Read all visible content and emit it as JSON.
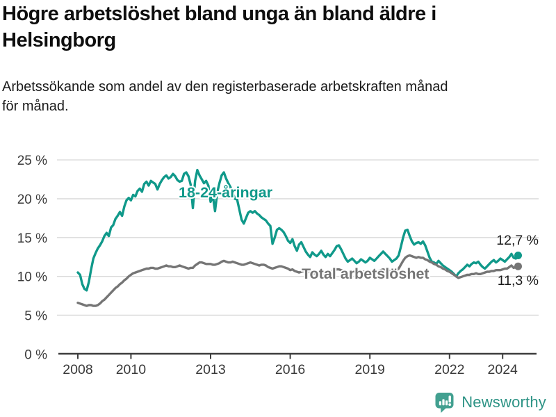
{
  "colors": {
    "background": "#ffffff",
    "accent_teal": "#10998a",
    "total_gray": "#757575",
    "grid": "#d9d9d9",
    "axis_line": "#3d3d3d",
    "axis_text": "#3a3a3a",
    "end_label_text": "#1a1a1a",
    "logo_teal": "#42a090"
  },
  "footer": {
    "brand": "Newsworthy",
    "logo_icon": "bar-chart-speech-bubble-icon"
  },
  "chart_data": {
    "type": "line",
    "title": "Högre arbetslöshet bland unga än bland äldre i Helsingborg",
    "subtitle": "Arbetssökande som andel av den registerbaserade arbetskraften månad för månad.",
    "grid": true,
    "legend_position": "inline-labels",
    "x_axis": {
      "unit": "year",
      "frequency": "monthly",
      "start": "2008-01",
      "end": "2024-08",
      "ticks": [
        2008,
        2010,
        2013,
        2016,
        2019,
        2022,
        2024
      ]
    },
    "y_axis": {
      "unit": "%",
      "range": [
        0,
        25
      ],
      "tick_labels": [
        "0 %",
        "5 %",
        "10 %",
        "15 %",
        "20 %",
        "25 %"
      ]
    },
    "series": [
      {
        "name": "18-24-åringar",
        "color": "#10998a",
        "end_label": "12,7 %",
        "end_value": 12.7,
        "values": [
          10.5,
          10.2,
          9.0,
          8.4,
          8.2,
          9.3,
          10.9,
          12.3,
          13.0,
          13.6,
          14.0,
          14.5,
          15.2,
          15.6,
          15.2,
          16.3,
          16.6,
          17.4,
          17.8,
          18.3,
          17.8,
          19.0,
          19.8,
          20.1,
          19.8,
          20.5,
          20.3,
          21.0,
          21.3,
          20.9,
          21.9,
          22.2,
          21.7,
          22.3,
          22.1,
          21.9,
          21.2,
          21.9,
          22.4,
          22.8,
          23.0,
          22.6,
          22.8,
          23.2,
          22.9,
          22.4,
          22.2,
          22.3,
          23.2,
          23.4,
          22.9,
          21.8,
          18.8,
          22.3,
          23.7,
          23.0,
          22.5,
          22.0,
          22.3,
          21.7,
          19.6,
          20.4,
          18.4,
          20.8,
          22.0,
          23.0,
          23.4,
          22.6,
          22.0,
          21.5,
          20.8,
          20.0,
          19.9,
          18.6,
          17.3,
          16.8,
          17.5,
          18.2,
          18.4,
          18.2,
          18.4,
          18.1,
          17.9,
          17.6,
          17.4,
          17.2,
          16.8,
          16.5,
          14.2,
          15.0,
          16.0,
          16.2,
          16.0,
          15.7,
          15.2,
          14.6,
          14.3,
          14.8,
          13.9,
          13.3,
          14.1,
          14.4,
          13.8,
          13.2,
          12.8,
          12.5,
          13.1,
          12.8,
          12.6,
          12.9,
          13.3,
          12.8,
          12.5,
          12.9,
          12.6,
          13.0,
          13.4,
          13.9,
          14.0,
          13.5,
          12.9,
          12.3,
          11.9,
          12.1,
          12.3,
          12.0,
          11.7,
          11.9,
          12.2,
          12.0,
          11.8,
          12.0,
          12.4,
          12.2,
          12.0,
          12.3,
          12.6,
          12.9,
          13.2,
          12.9,
          12.6,
          12.3,
          11.9,
          12.1,
          12.3,
          12.7,
          13.8,
          15.0,
          15.9,
          16.0,
          15.2,
          14.5,
          14.1,
          14.3,
          14.4,
          14.2,
          14.5,
          14.0,
          13.2,
          12.4,
          11.9,
          11.8,
          11.6,
          12.0,
          11.7,
          11.4,
          11.2,
          11.0,
          10.8,
          10.6,
          10.3,
          10.0,
          10.4,
          10.7,
          10.9,
          11.2,
          11.5,
          11.3,
          11.6,
          11.8,
          11.7,
          11.9,
          11.5,
          11.2,
          11.0,
          11.3,
          11.6,
          11.9,
          12.1,
          11.8,
          12.0,
          12.3,
          12.1,
          11.9,
          12.2,
          12.5,
          12.9,
          12.4,
          12.3,
          12.7
        ]
      },
      {
        "name": "Total arbetslöshet",
        "color": "#757575",
        "end_label": "11,3 %",
        "end_value": 11.3,
        "values": [
          6.6,
          6.5,
          6.4,
          6.3,
          6.2,
          6.3,
          6.3,
          6.2,
          6.2,
          6.3,
          6.5,
          6.8,
          7.0,
          7.3,
          7.6,
          7.9,
          8.2,
          8.5,
          8.7,
          9.0,
          9.2,
          9.5,
          9.7,
          10.0,
          10.2,
          10.4,
          10.5,
          10.6,
          10.7,
          10.8,
          10.9,
          11.0,
          11.0,
          11.1,
          11.1,
          11.0,
          11.0,
          11.1,
          11.2,
          11.3,
          11.4,
          11.3,
          11.3,
          11.2,
          11.2,
          11.3,
          11.4,
          11.3,
          11.2,
          11.1,
          11.0,
          11.1,
          11.1,
          11.4,
          11.6,
          11.8,
          11.8,
          11.7,
          11.6,
          11.6,
          11.6,
          11.5,
          11.5,
          11.6,
          11.7,
          11.9,
          12.0,
          11.9,
          11.8,
          11.8,
          11.9,
          11.8,
          11.7,
          11.6,
          11.5,
          11.5,
          11.6,
          11.7,
          11.8,
          11.7,
          11.6,
          11.5,
          11.4,
          11.5,
          11.5,
          11.4,
          11.2,
          11.1,
          11.0,
          11.1,
          11.2,
          11.3,
          11.3,
          11.2,
          11.1,
          11.0,
          10.8,
          10.9,
          10.7,
          10.6,
          10.5,
          10.6,
          10.7,
          10.7,
          10.6,
          10.5,
          10.4,
          10.4,
          10.5,
          10.4,
          10.3,
          10.4,
          10.5,
          10.6,
          10.6,
          10.7,
          10.8,
          10.9,
          10.9,
          10.8,
          10.7,
          10.5,
          10.4,
          10.4,
          10.5,
          10.6,
          10.6,
          10.5,
          10.5,
          10.6,
          10.6,
          10.6,
          10.7,
          10.6,
          10.5,
          10.6,
          10.7,
          10.8,
          10.9,
          10.8,
          10.8,
          10.7,
          10.7,
          10.7,
          10.8,
          11.0,
          11.5,
          12.0,
          12.4,
          12.6,
          12.7,
          12.6,
          12.5,
          12.4,
          12.5,
          12.4,
          12.4,
          12.2,
          12.1,
          11.9,
          11.8,
          11.6,
          11.5,
          11.3,
          11.2,
          11.0,
          10.9,
          10.7,
          10.6,
          10.4,
          10.2,
          10.0,
          9.8,
          9.9,
          10.0,
          10.1,
          10.2,
          10.2,
          10.3,
          10.3,
          10.4,
          10.3,
          10.3,
          10.4,
          10.5,
          10.6,
          10.6,
          10.7,
          10.7,
          10.8,
          10.8,
          10.8,
          10.9,
          11.0,
          11.0,
          11.2,
          11.4,
          11.1,
          11.2,
          11.3
        ]
      }
    ]
  }
}
